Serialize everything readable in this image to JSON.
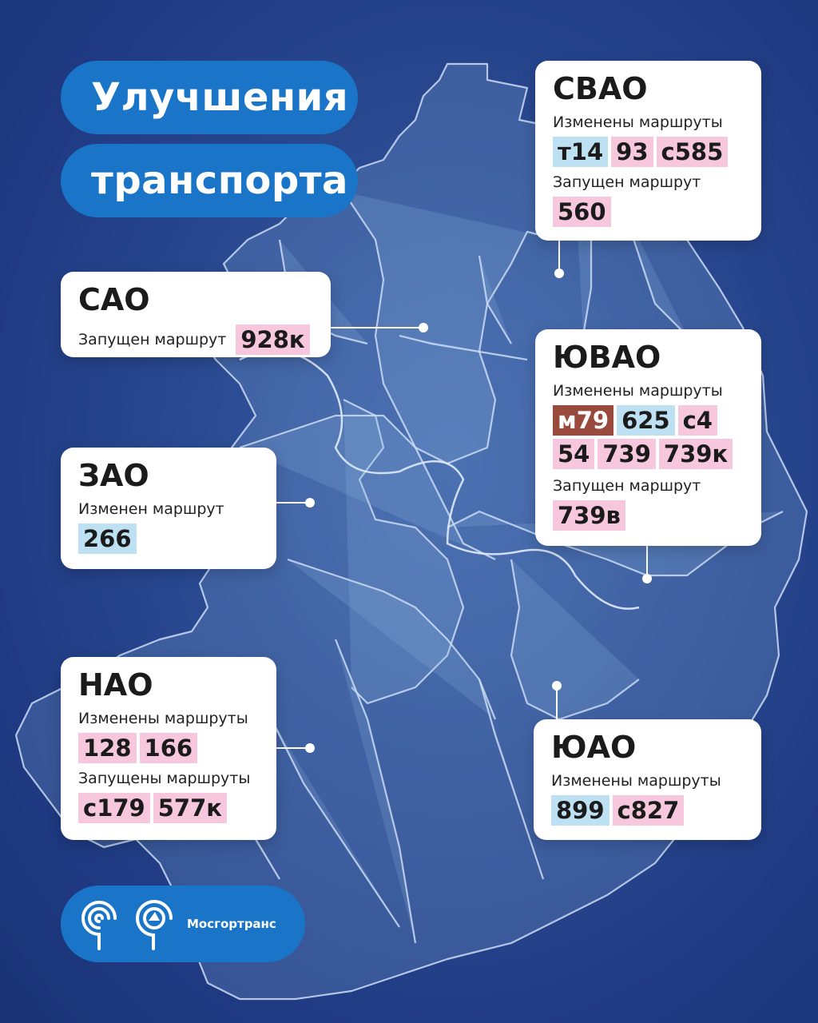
{
  "title_lines": [
    "Улучшения",
    "транспорта"
  ],
  "districts": {
    "svao": {
      "name": "СВАО",
      "sections": [
        {
          "label": "Изменены маршруты",
          "chips": [
            {
              "text": "т14",
              "color": "blue"
            },
            {
              "text": "93",
              "color": "pink"
            },
            {
              "text": "с585",
              "color": "pink"
            }
          ]
        },
        {
          "label": "Запущен маршрут",
          "chips": [
            {
              "text": "560",
              "color": "pink"
            }
          ]
        }
      ]
    },
    "sao": {
      "name": "САО",
      "sections": [
        {
          "label": "Запущен маршрут",
          "chips": [
            {
              "text": "928к",
              "color": "pink"
            }
          ]
        }
      ]
    },
    "yuvao": {
      "name": "ЮВАО",
      "sections": [
        {
          "label": "Изменены маршруты",
          "chips": [
            {
              "text": "м79",
              "color": "brown"
            },
            {
              "text": "625",
              "color": "blue"
            },
            {
              "text": "с4",
              "color": "pink"
            },
            {
              "text": "54",
              "color": "pink"
            },
            {
              "text": "739",
              "color": "pink"
            },
            {
              "text": "739к",
              "color": "pink"
            }
          ]
        },
        {
          "label": "Запущен маршрут",
          "chips": [
            {
              "text": "739в",
              "color": "pink"
            }
          ]
        }
      ]
    },
    "zao": {
      "name": "ЗАО",
      "sections": [
        {
          "label": "Изменен маршрут",
          "chips": [
            {
              "text": "266",
              "color": "blue"
            }
          ]
        }
      ]
    },
    "nao": {
      "name": "НАО",
      "sections": [
        {
          "label": "Изменены маршруты",
          "chips": [
            {
              "text": "128",
              "color": "pink"
            },
            {
              "text": "166",
              "color": "pink"
            }
          ]
        },
        {
          "label": "Запущены маршруты",
          "chips": [
            {
              "text": "с179",
              "color": "pink"
            },
            {
              "text": "577к",
              "color": "pink"
            }
          ]
        }
      ]
    },
    "yuao": {
      "name": "ЮАО",
      "sections": [
        {
          "label": "Изменены маршруты",
          "chips": [
            {
              "text": "899",
              "color": "blue"
            },
            {
              "text": "с827",
              "color": "pink"
            }
          ]
        }
      ]
    }
  },
  "logo": {
    "text": "Мосгортранс"
  },
  "colors": {
    "pink": "#f6c7dd",
    "blue": "#bde0f2",
    "brown": "#9a4a3d",
    "accent": "#1a74c7",
    "background": "#2a4a92"
  }
}
